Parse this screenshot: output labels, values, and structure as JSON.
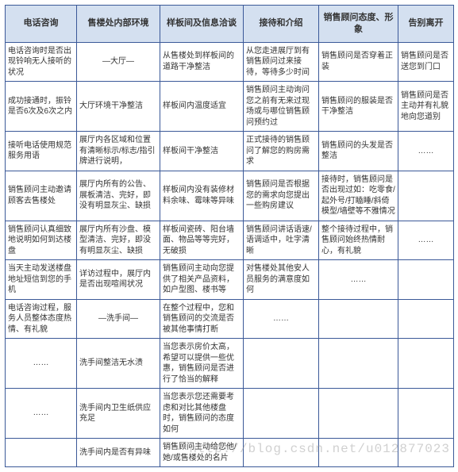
{
  "table": {
    "headers": [
      "电话咨询",
      "售楼处内部环境",
      "样板间及信息洽谈",
      "接待和介绍",
      "销售顾问态度、形象",
      "告别离开"
    ],
    "rows": [
      [
        "电话咨询时是否出现铃响无人接听的状况",
        "—大厅—",
        "从售楼处到样板间的道路干净整洁",
        "从您走进展厅到有销售顾问过来接待，等待多少时间",
        "销售顾问是否穿着正装",
        "销售顾问是否送您到门口"
      ],
      [
        "成功接通时，振铃是否6次及6次之内",
        "大厅环境干净整洁",
        "样板间内温度适宜",
        "销售顾问主动询问您之前有无来过现场或与哪位销售顾问预约过",
        "销售顾问的服装是否干净整洁",
        "销售顾问是否主动并有礼貌地向您道别"
      ],
      [
        "接听电话使用规范服务用语",
        "展厅内各区域和位置有清晰标示/标志/指引牌进行说明，",
        "样板间干净整洁",
        "正式接待的销售顾问了解您的购房需求",
        "销售顾问的头发是否整洁",
        "……"
      ],
      [
        "销售顾问主动邀请顾客去售楼处",
        "展厅内所有的公告、展板清洁、完好，即没有明显灰尘、缺损",
        "样板间内没有装修材料余味、霉味等异味",
        "销售顾问是否根据您的需求向您提出一些购房建议",
        "接待时，销售顾问是否出现过如：吃零食/起外号/打瞌睡/斜倚模型/墙壁等不雅情况",
        ""
      ],
      [
        "销售顾问认真细致地说明如何到达楼盘",
        "展厅内所有沙盘、模型清洁、完好，即没有明显灰尘、缺损",
        "样板间瓷砖、阳台墙面、物品等等完好，无破损",
        "销售顾问讲话语速/语调适中，吐字清晰",
        "整个接待过程中，销售顾问始终热情耐心，有礼貌",
        "……"
      ],
      [
        "当天主动发送楼盘地址短信到您的手机",
        "详访过程中，展厅内是否出现喧闹状况",
        "销售顾问主动向您提供了相关产品资料，如户型图、楼书等",
        "对售楼处其他安人员服务的满意度如何",
        "……",
        ""
      ],
      [
        "电话咨询过程，服务人员整体态度热情、有礼貌",
        "—洗手间—",
        "在整个过程中，您和销售顾问的交流是否被其他事情打断",
        "……",
        "",
        ""
      ],
      [
        "……",
        "洗手间整洁无水渍",
        "当您表示房价太高，希望可以提供一些优惠，销售顾问是否进行了恰当的解释",
        "",
        "",
        ""
      ],
      [
        "……",
        "洗手间内卫生纸供应充足",
        "当您表示您还需要考虑和对比其他楼盘时，销售顾问的态度如何",
        "",
        "",
        ""
      ],
      [
        "",
        "洗手间内是否有异味",
        "销售顾问主动给您他/她/或售楼处的名片",
        "",
        "",
        ""
      ]
    ]
  },
  "watermark": "http://blog.csdn.net/u012877023",
  "styles": {
    "header_bg": "#d4e0f0",
    "border_color": "#3b5998",
    "cell_fontsize": 10,
    "header_fontsize": 11,
    "text_color": "#333333"
  }
}
